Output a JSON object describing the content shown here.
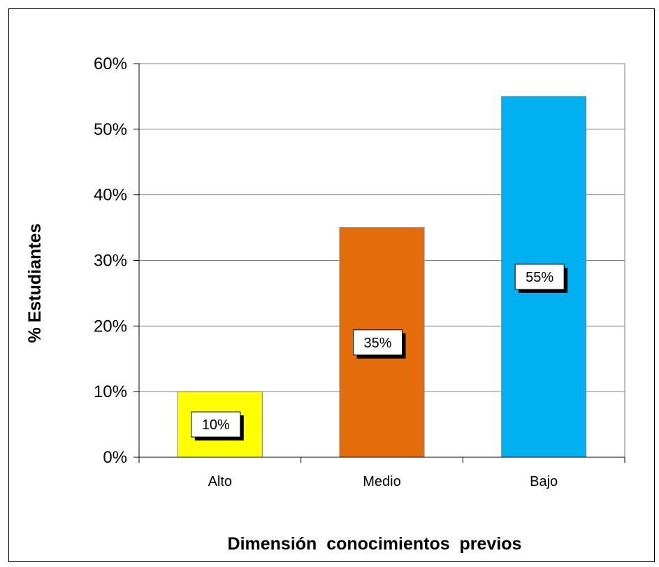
{
  "chart_data": {
    "type": "bar",
    "title": "",
    "xlabel": "Dimensión  conocimientos  previos",
    "ylabel": "% Estudiantes",
    "categories": [
      "Alto",
      "Medio",
      "Bajo"
    ],
    "values": [
      10,
      35,
      55
    ],
    "data_labels": [
      "10%",
      "35%",
      "55%"
    ],
    "bar_colors": [
      "#ffff00",
      "#e46c0a",
      "#00b0f0"
    ],
    "ylim": [
      0,
      60
    ],
    "yticks": [
      0,
      10,
      20,
      30,
      40,
      50,
      60
    ],
    "ytick_labels": [
      "0%",
      "10%",
      "20%",
      "30%",
      "40%",
      "50%",
      "60%"
    ],
    "grid": true,
    "legend": "none"
  }
}
